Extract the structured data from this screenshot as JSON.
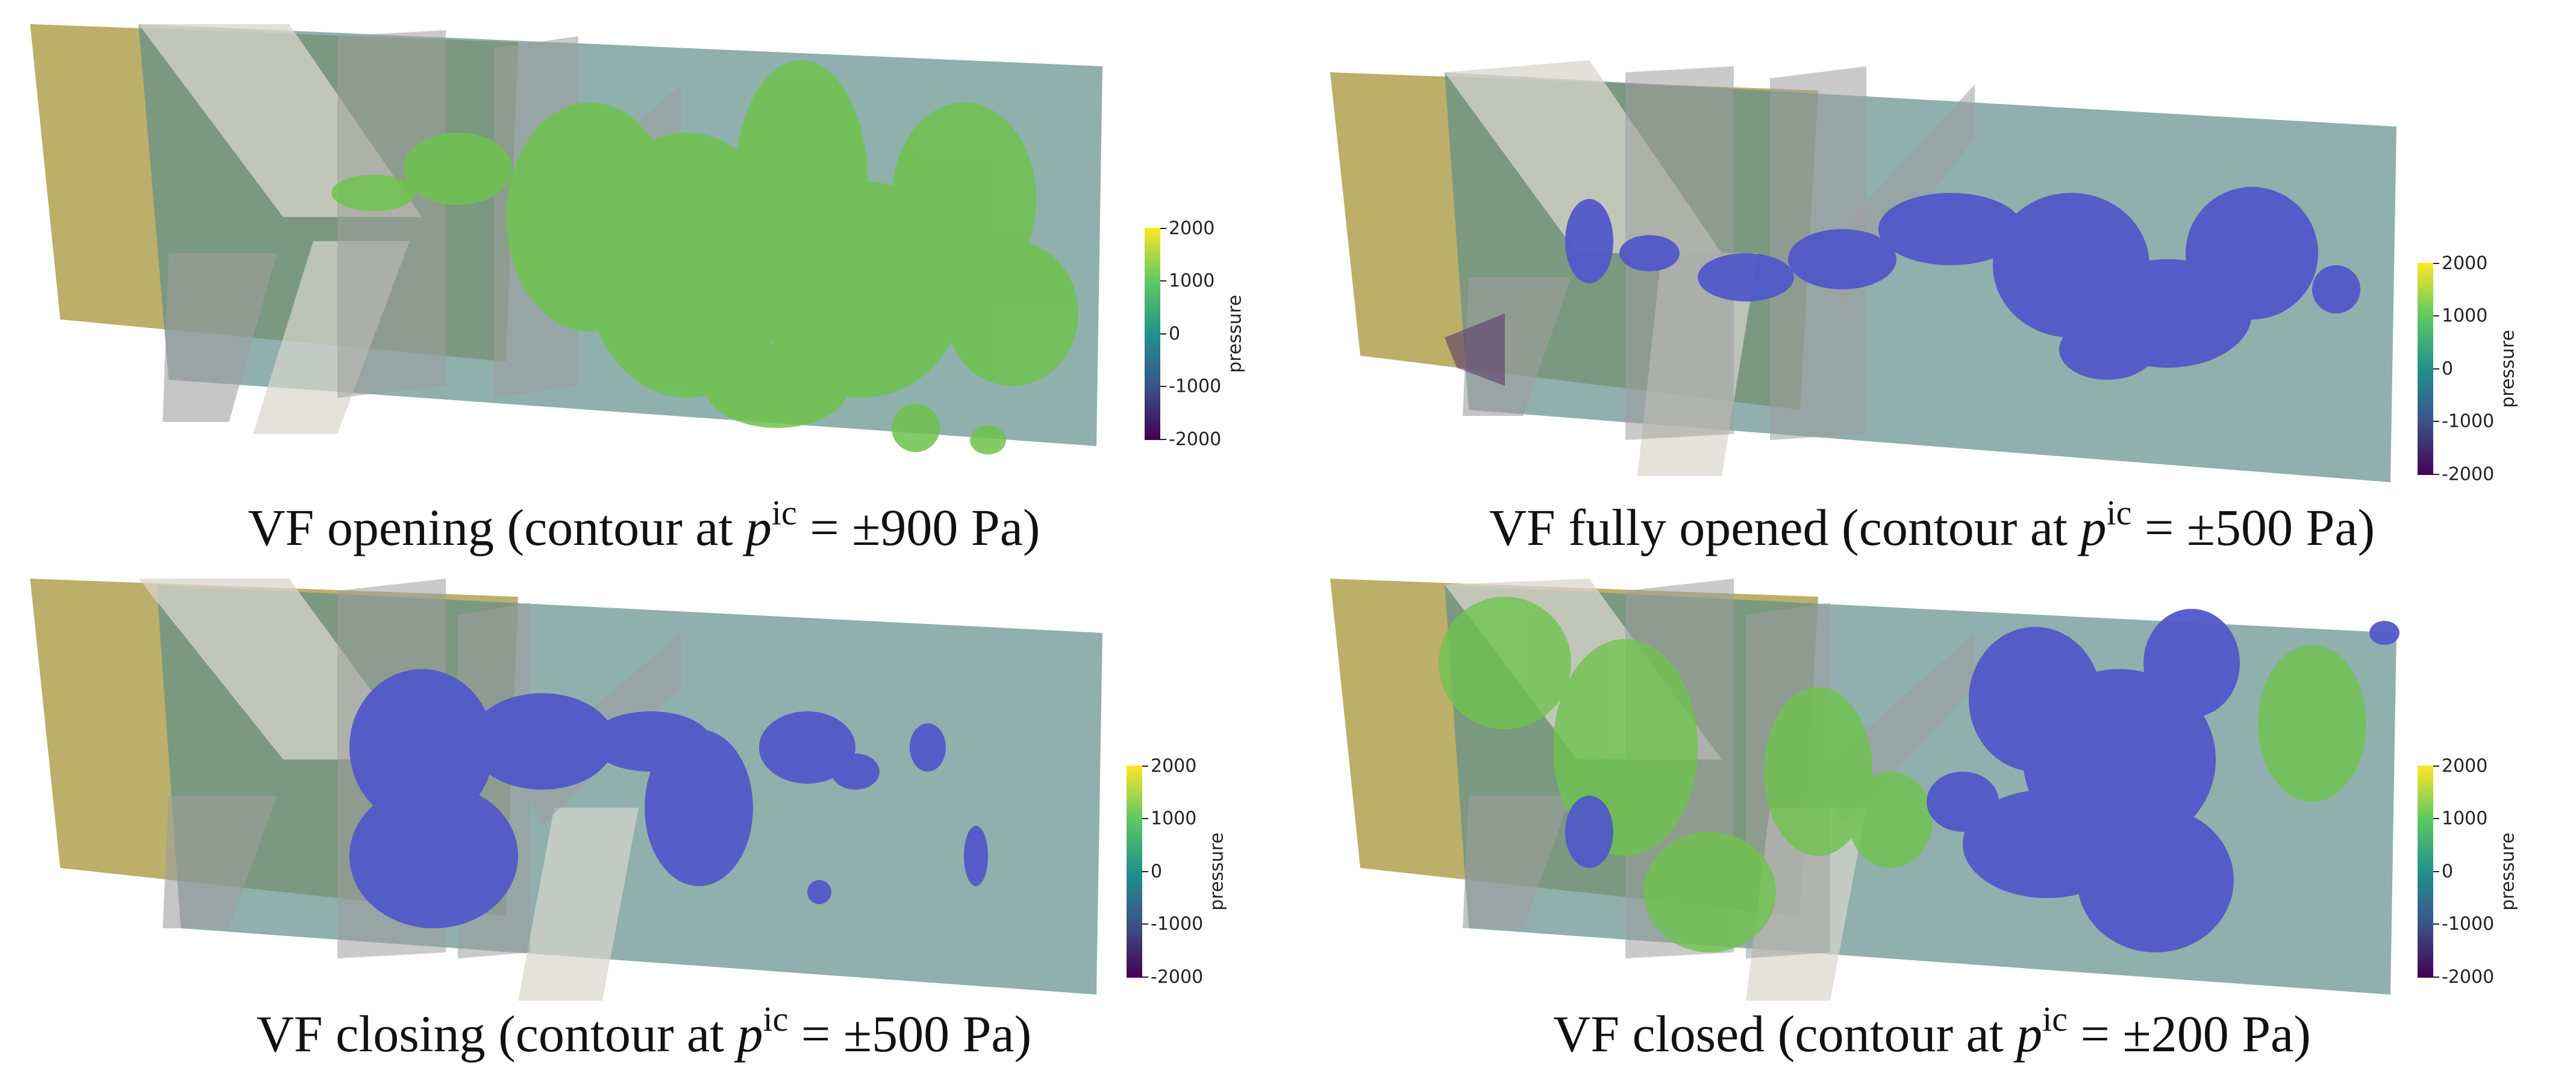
{
  "panels": [
    {
      "id": "opening",
      "label": "VF opening",
      "prefix": "(contour at ",
      "suffix": " = ±900 Pa)",
      "iso": "green"
    },
    {
      "id": "fully-opened",
      "label": "VF fully opened",
      "prefix": "(contour at ",
      "suffix": " = ±500 Pa)",
      "iso": "blue"
    },
    {
      "id": "closing",
      "label": "VF closing",
      "prefix": "(contour at ",
      "suffix": " = ±500 Pa)",
      "iso": "blue"
    },
    {
      "id": "closed",
      "label": "VF closed",
      "prefix": "(contour at ",
      "suffix": " = ±200 Pa)",
      "iso": "mixed"
    }
  ],
  "symbol": {
    "p": "p",
    "sup": "ic"
  },
  "colorbar": {
    "title": "pressure",
    "ticks": [
      "2000",
      "1000",
      "0",
      "-1000",
      "-2000"
    ],
    "colormap": "viridis"
  },
  "colors": {
    "yellow_plane": "#b7ab62",
    "teal_plane": "#5f8f8a",
    "grey_fold": "#9e9e9e",
    "light_fold": "#d9d6cc",
    "iso_green": "#6fc34d",
    "iso_blue": "#5158c9"
  }
}
